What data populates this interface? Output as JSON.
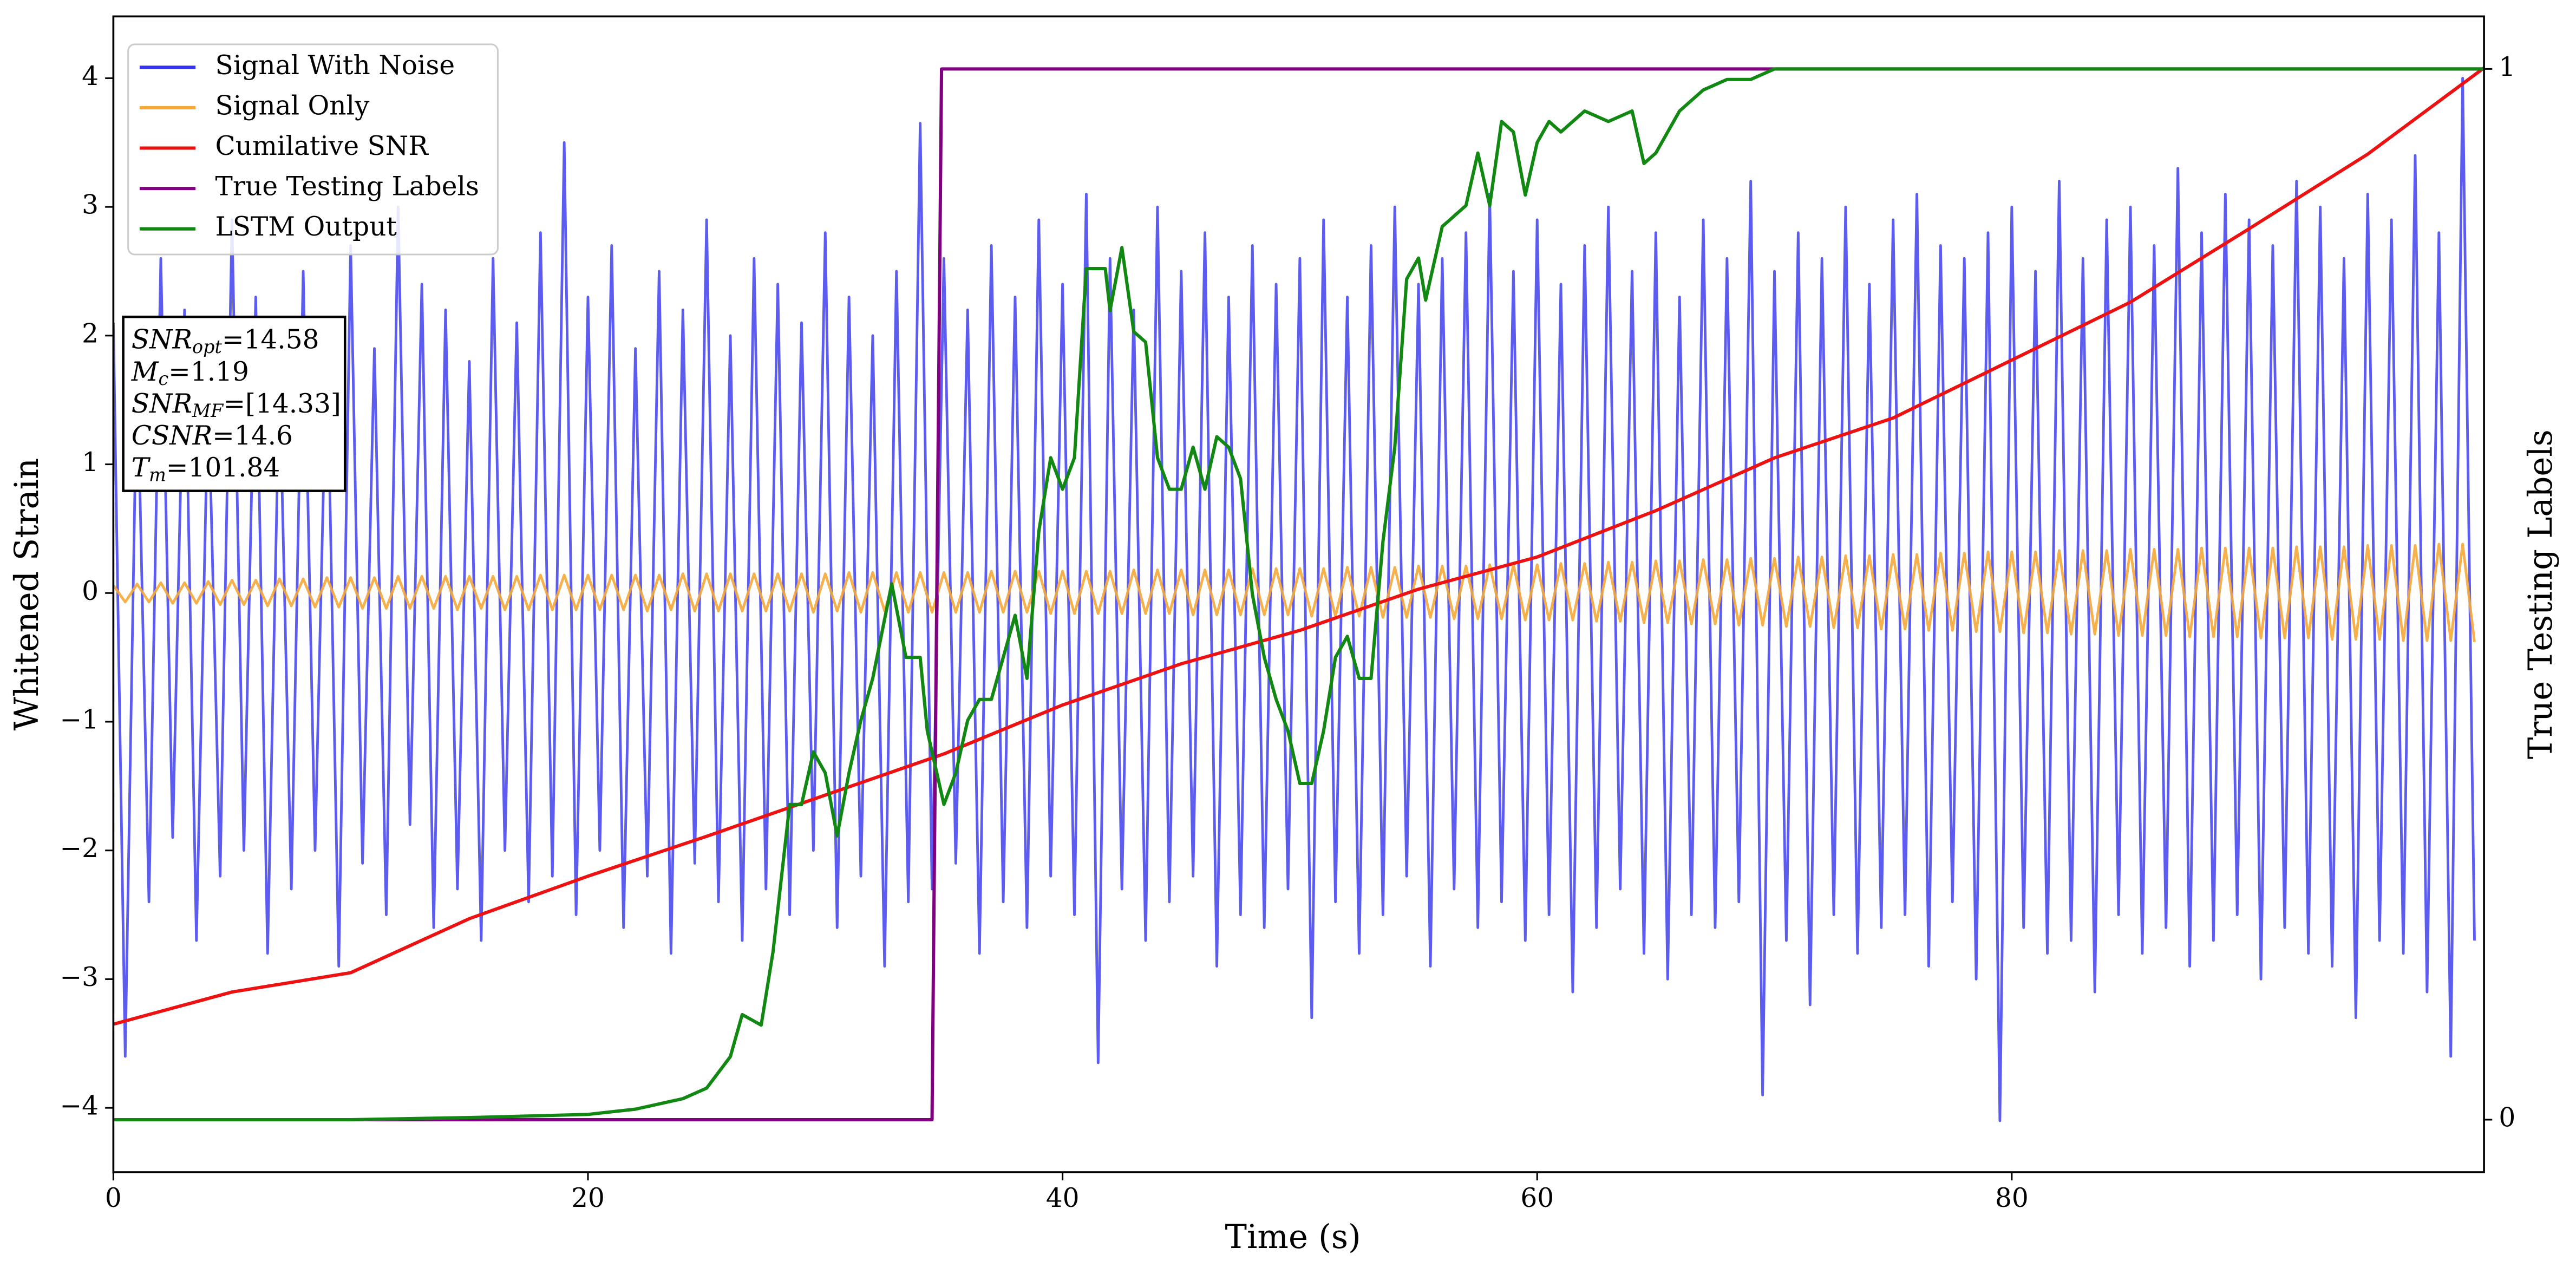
{
  "chart_data": {
    "type": "line",
    "xlabel": "Time (s)",
    "ylabel": "Whitened Strain",
    "y2label": "True Testing Labels",
    "xlim": [
      0,
      99.9
    ],
    "xticks": [
      0,
      20,
      40,
      60,
      80
    ],
    "ylim": [
      -4.5,
      4.48
    ],
    "yticks": [
      {
        "value": -4,
        "label": "−4"
      },
      {
        "value": -3,
        "label": "−3"
      },
      {
        "value": -2,
        "label": "−2"
      },
      {
        "value": -1,
        "label": "−1"
      },
      0,
      1,
      2,
      3,
      4
    ],
    "y2lim": [
      -0.05,
      1.05
    ],
    "y2ticks": [
      0,
      1
    ],
    "legend": "upper left",
    "x": [
      0,
      0.5,
      1,
      1.5,
      2,
      2.5,
      3,
      3.5,
      4,
      4.5,
      5,
      5.5,
      6,
      6.5,
      7,
      7.5,
      8,
      8.5,
      9,
      9.5,
      10,
      10.5,
      11,
      11.5,
      12,
      12.5,
      13,
      13.5,
      14,
      14.5,
      15,
      15.5,
      16,
      16.5,
      17,
      17.5,
      18,
      18.5,
      19,
      19.5,
      20,
      20.5,
      21,
      21.5,
      22,
      22.5,
      23,
      23.5,
      24,
      24.5,
      25,
      25.5,
      26,
      26.5,
      27,
      27.5,
      28,
      28.5,
      29,
      29.5,
      30,
      30.5,
      31,
      31.5,
      32,
      32.5,
      33,
      33.5,
      34,
      34.5,
      35,
      35.5,
      36,
      36.5,
      37,
      37.5,
      38,
      38.5,
      39,
      39.5,
      40,
      40.5,
      41,
      41.5,
      42,
      42.5,
      43,
      43.5,
      44,
      44.5,
      45,
      45.5,
      46,
      46.5,
      47,
      47.5,
      48,
      48.5,
      49,
      49.5,
      50,
      50.5,
      51,
      51.5,
      52,
      52.5,
      53,
      53.5,
      54,
      54.5,
      55,
      55.5,
      56,
      56.5,
      57,
      57.5,
      58,
      58.5,
      59,
      59.5,
      60,
      60.5,
      61,
      61.5,
      62,
      62.5,
      63,
      63.5,
      64,
      64.5,
      65,
      65.5,
      66,
      66.5,
      67,
      67.5,
      68,
      68.5,
      69,
      69.5,
      70,
      70.5,
      71,
      71.5,
      72,
      72.5,
      73,
      73.5,
      74,
      74.5,
      75,
      75.5,
      76,
      76.5,
      77,
      77.5,
      78,
      78.5,
      79,
      79.5,
      80,
      80.5,
      81,
      81.5,
      82,
      82.5,
      83,
      83.5,
      84,
      84.5,
      85,
      85.5,
      86,
      86.5,
      87,
      87.5,
      88,
      88.5,
      89,
      89.5,
      90,
      90.5,
      91,
      91.5,
      92,
      92.5,
      93,
      93.5,
      94,
      94.5,
      95,
      95.5,
      96,
      96.5,
      97,
      97.5,
      98,
      98.5,
      99,
      99.5
    ],
    "series": [
      {
        "name": "Signal With Noise",
        "color": "#3333ee",
        "values": [
          2.1,
          -3.6,
          1.8,
          -2.4,
          2.6,
          -1.9,
          2.2,
          -2.7,
          1.6,
          -2.2,
          2.9,
          -2.0,
          2.3,
          -2.8,
          1.7,
          -2.3,
          2.5,
          -2.0,
          2.0,
          -2.9,
          2.7,
          -2.1,
          1.9,
          -2.5,
          3.0,
          -1.8,
          2.4,
          -2.6,
          2.2,
          -2.3,
          1.8,
          -2.7,
          2.6,
          -2.0,
          2.1,
          -2.4,
          2.8,
          -2.2,
          3.5,
          -2.5,
          2.3,
          -2.0,
          2.7,
          -2.6,
          1.9,
          -2.2,
          2.5,
          -2.8,
          2.2,
          -2.1,
          2.9,
          -2.4,
          2.0,
          -2.7,
          2.6,
          -2.3,
          2.4,
          -2.5,
          2.1,
          -2.0,
          2.8,
          -2.6,
          2.3,
          -2.2,
          2.0,
          -2.9,
          2.5,
          -2.4,
          3.65,
          -2.3,
          2.6,
          -2.1,
          2.2,
          -2.8,
          2.7,
          -2.4,
          2.3,
          -2.6,
          2.9,
          -2.2,
          2.4,
          -2.5,
          3.1,
          -3.65,
          2.6,
          -2.3,
          2.2,
          -2.7,
          3.0,
          -2.4,
          2.5,
          -2.2,
          2.8,
          -2.9,
          2.3,
          -2.5,
          2.7,
          -2.6,
          2.4,
          -2.3,
          2.6,
          -3.3,
          2.9,
          -2.4,
          2.3,
          -2.8,
          2.7,
          -2.5,
          3.0,
          -2.2,
          2.4,
          -2.9,
          2.6,
          -2.3,
          2.8,
          -2.6,
          3.1,
          -2.4,
          2.5,
          -2.7,
          2.9,
          -2.5,
          2.4,
          -3.1,
          2.7,
          -2.6,
          3.0,
          -2.3,
          2.5,
          -2.8,
          2.8,
          -3.0,
          2.3,
          -2.5,
          2.9,
          -2.6,
          2.6,
          -2.4,
          3.2,
          -3.9,
          2.5,
          -2.7,
          2.8,
          -3.2,
          2.6,
          -2.5,
          3.0,
          -2.8,
          2.4,
          -2.6,
          2.9,
          -2.5,
          3.1,
          -2.9,
          2.7,
          -2.4,
          2.6,
          -3.0,
          2.8,
          -4.1,
          3.0,
          -2.6,
          2.5,
          -2.8,
          3.2,
          -2.7,
          2.6,
          -3.1,
          2.9,
          -2.5,
          3.0,
          -2.8,
          2.7,
          -2.6,
          3.3,
          -2.9,
          2.8,
          -2.7,
          3.1,
          -2.5,
          2.9,
          -3.0,
          2.7,
          -2.6,
          3.2,
          -2.8,
          3.0,
          -2.9,
          2.6,
          -3.3,
          3.1,
          -2.7,
          2.9,
          -2.8,
          3.4,
          -3.1,
          2.8,
          -3.6,
          4.0,
          -2.7
        ]
      },
      {
        "name": "Signal Only",
        "color": "#f5a83a",
        "values": [
          0.06,
          -0.07,
          0.07,
          -0.07,
          0.08,
          -0.08,
          0.08,
          -0.08,
          0.09,
          -0.09,
          0.1,
          -0.09,
          0.1,
          -0.1,
          0.11,
          -0.1,
          0.11,
          -0.11,
          0.12,
          -0.11,
          0.12,
          -0.12,
          0.12,
          -0.12,
          0.13,
          -0.12,
          0.13,
          -0.12,
          0.13,
          -0.13,
          0.13,
          -0.12,
          0.13,
          -0.13,
          0.13,
          -0.13,
          0.14,
          -0.13,
          0.14,
          -0.13,
          0.14,
          -0.13,
          0.14,
          -0.13,
          0.14,
          -0.14,
          0.14,
          -0.13,
          0.15,
          -0.14,
          0.15,
          -0.14,
          0.15,
          -0.14,
          0.15,
          -0.14,
          0.15,
          -0.14,
          0.15,
          -0.15,
          0.15,
          -0.14,
          0.16,
          -0.15,
          0.16,
          -0.14,
          0.16,
          -0.15,
          0.16,
          -0.15,
          0.16,
          -0.15,
          0.16,
          -0.15,
          0.17,
          -0.15,
          0.17,
          -0.15,
          0.17,
          -0.16,
          0.17,
          -0.16,
          0.17,
          -0.16,
          0.17,
          -0.16,
          0.18,
          -0.16,
          0.18,
          -0.16,
          0.18,
          -0.17,
          0.18,
          -0.17,
          0.18,
          -0.17,
          0.19,
          -0.17,
          0.19,
          -0.17,
          0.19,
          -0.18,
          0.19,
          -0.18,
          0.2,
          -0.18,
          0.2,
          -0.19,
          0.2,
          -0.19,
          0.21,
          -0.19,
          0.21,
          -0.2,
          0.21,
          -0.2,
          0.22,
          -0.2,
          0.22,
          -0.21,
          0.22,
          -0.21,
          0.23,
          -0.21,
          0.23,
          -0.22,
          0.24,
          -0.22,
          0.24,
          -0.23,
          0.25,
          -0.23,
          0.25,
          -0.24,
          0.26,
          -0.24,
          0.26,
          -0.25,
          0.27,
          -0.25,
          0.27,
          -0.26,
          0.28,
          -0.26,
          0.28,
          -0.27,
          0.29,
          -0.27,
          0.29,
          -0.28,
          0.3,
          -0.28,
          0.3,
          -0.29,
          0.31,
          -0.29,
          0.31,
          -0.3,
          0.32,
          -0.3,
          0.32,
          -0.31,
          0.32,
          -0.31,
          0.33,
          -0.32,
          0.33,
          -0.32,
          0.33,
          -0.33,
          0.34,
          -0.33,
          0.34,
          -0.33,
          0.34,
          -0.34,
          0.35,
          -0.34,
          0.35,
          -0.34,
          0.35,
          -0.35,
          0.35,
          -0.35,
          0.36,
          -0.35,
          0.36,
          -0.36,
          0.36,
          -0.36,
          0.37,
          -0.36,
          0.37,
          -0.37,
          0.37,
          -0.37,
          0.38,
          -0.37,
          0.38,
          -0.38
        ]
      },
      {
        "name": "Cumilative SNR",
        "color": "#ee1111",
        "x": [
          0,
          5,
          10,
          15,
          20,
          25,
          30,
          35,
          40,
          45,
          50,
          55,
          60,
          65,
          70,
          75,
          80,
          85,
          90,
          95,
          99.9
        ],
        "values": [
          -3.35,
          -3.1,
          -2.95,
          -2.53,
          -2.2,
          -1.89,
          -1.57,
          -1.25,
          -0.87,
          -0.55,
          -0.29,
          0.03,
          0.28,
          0.64,
          1.05,
          1.36,
          1.81,
          2.26,
          2.83,
          3.41,
          4.08
        ]
      },
      {
        "name": "True Testing Labels",
        "color": "#800080",
        "axis": "y2",
        "x": [
          0,
          34.5,
          34.9,
          99.9
        ],
        "values": [
          0,
          0,
          1,
          1
        ]
      },
      {
        "name": "LSTM Output",
        "color": "#118811",
        "axis": "y2",
        "x": [
          0,
          10,
          15,
          20,
          22,
          24,
          25,
          26,
          26.5,
          27.3,
          27.8,
          28.5,
          29,
          29.5,
          30,
          30.5,
          31,
          31.5,
          32,
          32.8,
          33.4,
          34,
          34.3,
          35,
          35.5,
          36,
          36.5,
          37,
          37.5,
          38,
          38.5,
          39,
          39.5,
          40,
          40.5,
          41,
          41.8,
          42,
          42.5,
          43,
          43.5,
          44,
          44.5,
          45,
          45.5,
          46,
          46.5,
          47,
          47.5,
          48,
          48.5,
          49,
          49.5,
          50,
          50.5,
          51,
          51.5,
          52,
          52.5,
          53,
          53.5,
          54,
          54.5,
          55,
          55.3,
          56,
          56.5,
          57,
          57.5,
          58,
          58.5,
          59,
          59.5,
          60,
          60.5,
          61,
          62,
          63,
          64,
          64.5,
          65,
          66,
          67,
          68,
          69,
          70,
          71,
          80,
          99.9
        ],
        "values": [
          0,
          0,
          0.002,
          0.005,
          0.01,
          0.02,
          0.03,
          0.06,
          0.1,
          0.09,
          0.16,
          0.3,
          0.3,
          0.35,
          0.33,
          0.27,
          0.33,
          0.38,
          0.42,
          0.51,
          0.44,
          0.44,
          0.37,
          0.3,
          0.33,
          0.38,
          0.4,
          0.4,
          0.44,
          0.48,
          0.42,
          0.56,
          0.63,
          0.6,
          0.63,
          0.81,
          0.81,
          0.77,
          0.83,
          0.75,
          0.74,
          0.63,
          0.6,
          0.6,
          0.64,
          0.6,
          0.65,
          0.64,
          0.61,
          0.5,
          0.44,
          0.4,
          0.37,
          0.32,
          0.32,
          0.37,
          0.44,
          0.46,
          0.42,
          0.42,
          0.55,
          0.64,
          0.8,
          0.82,
          0.78,
          0.85,
          0.86,
          0.87,
          0.92,
          0.87,
          0.95,
          0.94,
          0.88,
          0.93,
          0.95,
          0.94,
          0.96,
          0.95,
          0.96,
          0.91,
          0.92,
          0.96,
          0.98,
          0.99,
          0.99,
          1,
          1,
          1,
          1
        ]
      }
    ],
    "annotations": [
      {
        "name": "SNR",
        "sub": "opt",
        "text": "=14.58"
      },
      {
        "name": "M",
        "sub": "c",
        "text": "=1.19"
      },
      {
        "name": "SNR",
        "sub": "MF",
        "text": "=[14.33]"
      },
      {
        "name": "CSNR",
        "text": "=14.6"
      },
      {
        "name": "T",
        "sub": "m",
        "text": "=101.84"
      }
    ]
  }
}
